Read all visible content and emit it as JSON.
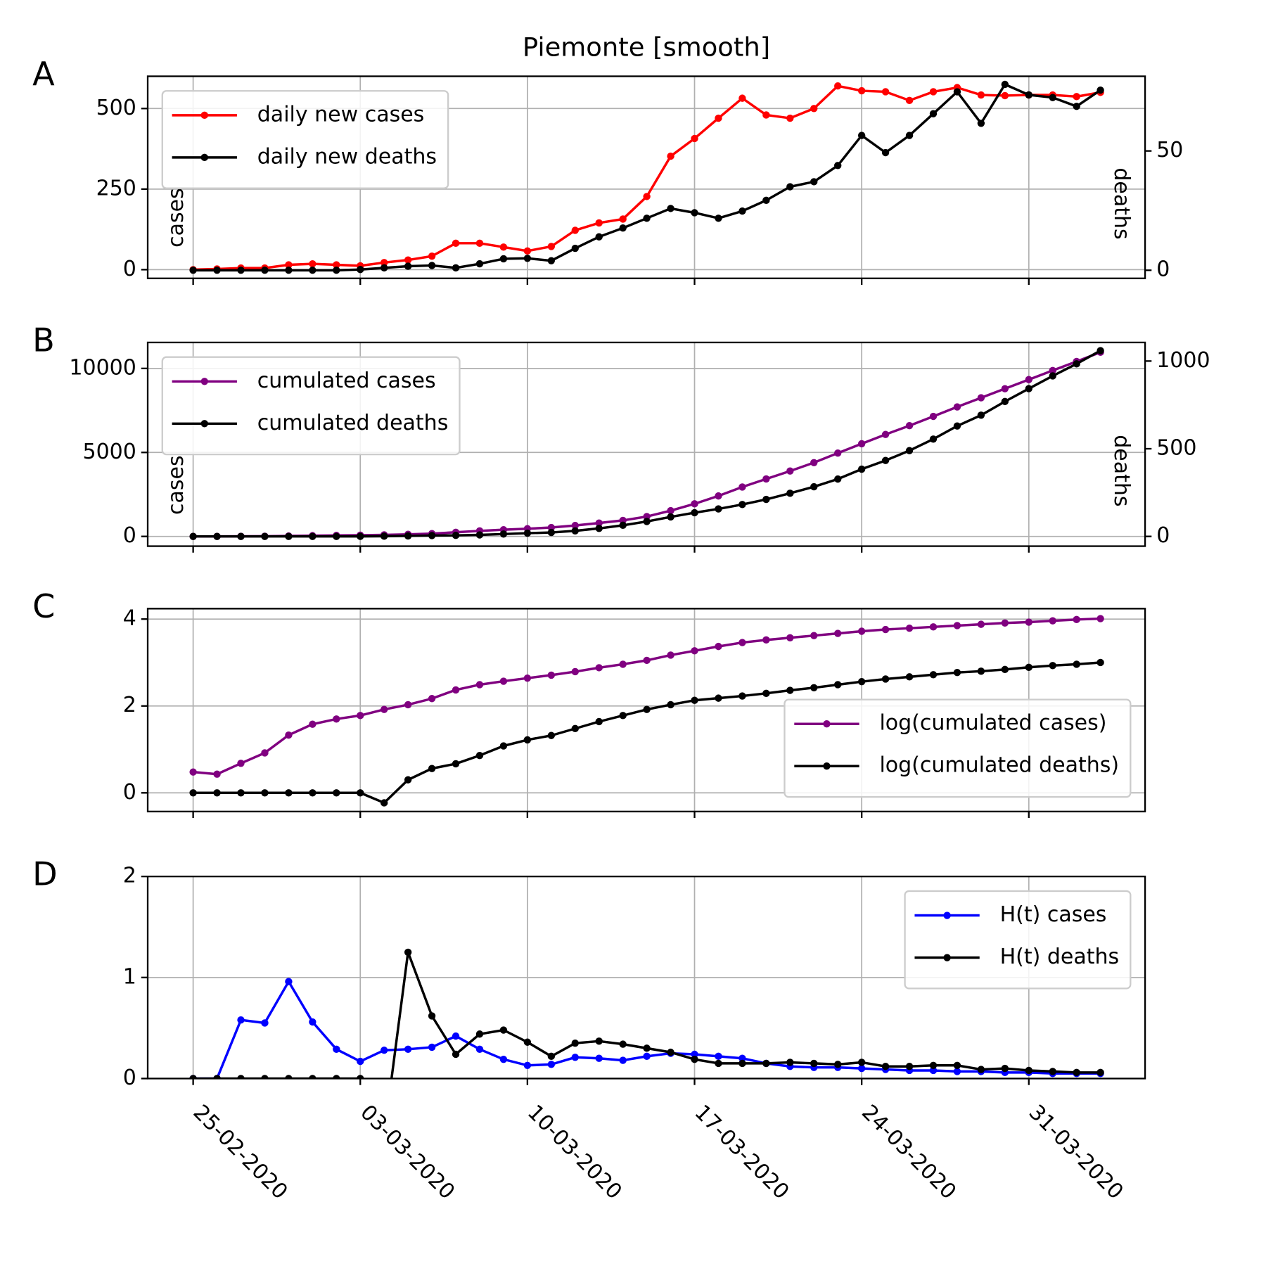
{
  "chart_data": [
    {
      "type": "line",
      "label": "A",
      "title": "Piemonte [smooth]",
      "ylabel": "cases",
      "y2label": "deaths",
      "legend": "upper left",
      "grid": true,
      "ylim": [
        -27,
        600
      ],
      "yticks": [
        0,
        250,
        500
      ],
      "y2lim": [
        -3.4,
        81.3
      ],
      "y2ticks": [
        0,
        50
      ],
      "series": [
        {
          "name": "daily new cases",
          "color": "#ff0000",
          "values": [
            0,
            2,
            5,
            5,
            15,
            18,
            15,
            12,
            22,
            30,
            42,
            82,
            82,
            70,
            58,
            72,
            122,
            145,
            157,
            227,
            352,
            407,
            470,
            532,
            480,
            470,
            500,
            570,
            555,
            552,
            525,
            552,
            565,
            542,
            540,
            542,
            542,
            537,
            550
          ]
        },
        {
          "name": "daily new deaths",
          "color": "#000000",
          "axis": "y2",
          "values": [
            0,
            0,
            0,
            0,
            0,
            0,
            0,
            0.3,
            1,
            1.7,
            2,
            1,
            2.7,
            4.8,
            5,
            4,
            9.2,
            14,
            17.7,
            21.8,
            25.9,
            24.1,
            21.8,
            24.8,
            29.3,
            35,
            37.1,
            43.9,
            56.5,
            49.3,
            56.5,
            65.6,
            74.8,
            61.6,
            77.9,
            73.5,
            72.4,
            68.7,
            75.5
          ]
        }
      ]
    },
    {
      "type": "line",
      "label": "B",
      "ylabel": "cases",
      "y2label": "deaths",
      "legend": "upper left",
      "grid": true,
      "ylim": [
        -580,
        11546
      ],
      "yticks": [
        0,
        5000,
        10000
      ],
      "y2lim": [
        -55.6,
        1106
      ],
      "y2ticks": [
        0,
        500,
        1000
      ],
      "series": [
        {
          "name": "cumulated cases",
          "color": "#800080",
          "values": [
            0,
            2,
            7,
            12,
            27,
            45,
            60,
            72,
            94,
            124,
            166,
            248,
            330,
            400,
            458,
            530,
            652,
            797,
            954,
            1181,
            1533,
            1940,
            2410,
            2942,
            3422,
            3892,
            4392,
            4962,
            5517,
            6069,
            6594,
            7146,
            7711,
            8253,
            8793,
            9335,
            9877,
            10414,
            10964
          ]
        },
        {
          "name": "cumulated deaths",
          "color": "#000000",
          "axis": "y2",
          "values": [
            0,
            0,
            0,
            0,
            0,
            0,
            0,
            0.3,
            1.3,
            3,
            5,
            6,
            8.7,
            13.5,
            18.5,
            22.5,
            31.7,
            45.7,
            63.4,
            85.2,
            111.1,
            135.2,
            157,
            181.8,
            211.1,
            246.1,
            283.2,
            327.1,
            383.6,
            432.9,
            489.4,
            555,
            629.8,
            691.4,
            769.3,
            842.8,
            915.2,
            983.9,
            1059.4
          ]
        }
      ]
    },
    {
      "type": "line",
      "label": "C",
      "legend": "lower right",
      "grid": true,
      "ylim": [
        -0.43,
        4.24
      ],
      "yticks": [
        0,
        2,
        4
      ],
      "series": [
        {
          "name": "log(cumulated cases)",
          "color": "#800080",
          "values": [
            0.48,
            0.43,
            0.68,
            0.92,
            1.33,
            1.58,
            1.7,
            1.78,
            1.92,
            2.03,
            2.17,
            2.37,
            2.49,
            2.57,
            2.64,
            2.71,
            2.79,
            2.88,
            2.96,
            3.05,
            3.17,
            3.27,
            3.37,
            3.46,
            3.52,
            3.57,
            3.62,
            3.67,
            3.72,
            3.76,
            3.79,
            3.82,
            3.85,
            3.88,
            3.91,
            3.93,
            3.96,
            3.99,
            4.01
          ]
        },
        {
          "name": "log(cumulated deaths)",
          "color": "#000000",
          "values": [
            0,
            0,
            0,
            0,
            0,
            0,
            0,
            0,
            -0.23,
            0.3,
            0.56,
            0.67,
            0.86,
            1.08,
            1.22,
            1.32,
            1.48,
            1.64,
            1.78,
            1.92,
            2.03,
            2.13,
            2.18,
            2.23,
            2.29,
            2.36,
            2.42,
            2.49,
            2.56,
            2.62,
            2.67,
            2.72,
            2.77,
            2.8,
            2.84,
            2.89,
            2.93,
            2.96,
            3.0
          ]
        }
      ]
    },
    {
      "type": "line",
      "label": "D",
      "legend": "upper right",
      "grid": true,
      "ylim": [
        0,
        2
      ],
      "yticks": [
        0,
        1,
        2
      ],
      "categories": [
        "25-02-2020",
        null,
        null,
        null,
        null,
        null,
        null,
        "03-03-2020",
        null,
        null,
        null,
        null,
        null,
        null,
        "10-03-2020",
        null,
        null,
        null,
        null,
        null,
        null,
        "17-03-2020",
        null,
        null,
        null,
        null,
        null,
        null,
        "24-03-2020",
        null,
        null,
        null,
        null,
        null,
        null,
        "31-03-2020",
        null,
        null,
        null
      ],
      "series": [
        {
          "name": "H(t) cases",
          "color": "#0000ff",
          "values": [
            0,
            0,
            0.58,
            0.55,
            0.96,
            0.56,
            0.29,
            0.17,
            0.28,
            0.29,
            0.31,
            0.42,
            0.29,
            0.19,
            0.13,
            0.14,
            0.21,
            0.2,
            0.18,
            0.22,
            0.25,
            0.24,
            0.22,
            0.2,
            0.15,
            0.12,
            0.11,
            0.11,
            0.1,
            0.09,
            0.08,
            0.08,
            0.07,
            0.07,
            0.06,
            0.06,
            0.05,
            0.05,
            0.05
          ]
        },
        {
          "name": "H(t) deaths",
          "color": "#000000",
          "values": [
            0,
            0,
            0,
            0,
            0,
            0,
            0,
            0,
            -0.56,
            1.25,
            0.62,
            0.24,
            0.44,
            0.48,
            0.36,
            0.22,
            0.35,
            0.37,
            0.34,
            0.3,
            0.26,
            0.19,
            0.15,
            0.15,
            0.15,
            0.16,
            0.15,
            0.14,
            0.16,
            0.12,
            0.12,
            0.13,
            0.13,
            0.09,
            0.1,
            0.08,
            0.07,
            0.06,
            0.06
          ]
        }
      ]
    }
  ]
}
